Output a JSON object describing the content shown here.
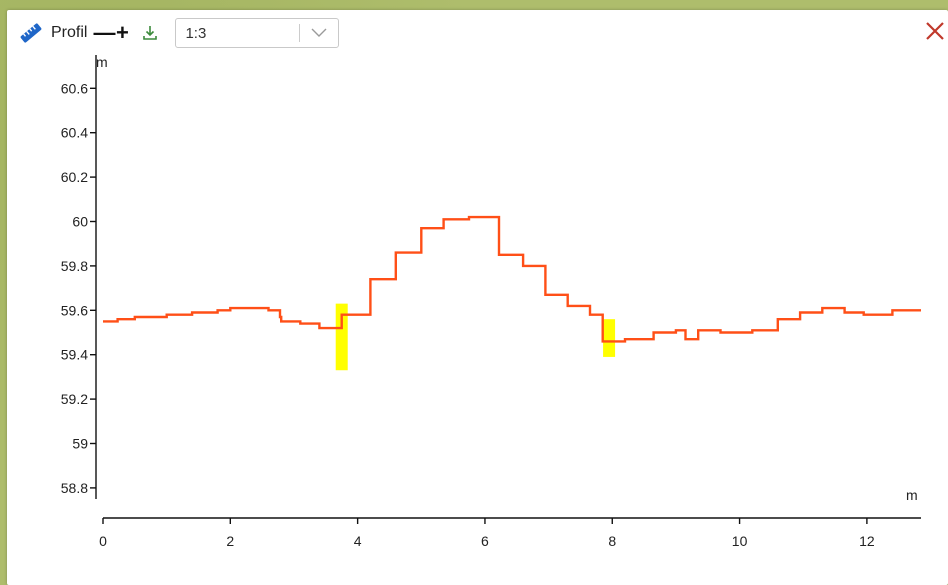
{
  "toolbar": {
    "ruler_icon": "ruler-icon",
    "title": "Profil",
    "zoom_out_label": "—",
    "zoom_in_label": "+",
    "download_icon": "download-icon",
    "scale_value": "1:3",
    "close_icon": "close-icon"
  },
  "colors": {
    "profile_line": "#ff4f17",
    "highlight": "#ffff00",
    "close": "#c0392b",
    "download": "#3c8a3c",
    "ruler": "#1f66c8"
  },
  "chart_data": {
    "type": "line",
    "ylabel": "m",
    "xlabel": "m",
    "xlim": [
      0,
      12.85
    ],
    "ylim": [
      58.75,
      60.75
    ],
    "x_ticks": [
      0,
      2,
      4,
      6,
      8,
      10,
      12
    ],
    "y_ticks": [
      58.8,
      59,
      59.2,
      59.4,
      59.6,
      59.8,
      60,
      60.2,
      60.4,
      60.6
    ],
    "y_tick_labels": [
      "58.8",
      "59",
      "59.2",
      "59.4",
      "59.6",
      "59.8",
      "60",
      "60.2",
      "60.4",
      "60.6"
    ],
    "series": [
      {
        "values": [
          [
            0,
            59.55
          ],
          [
            0.23,
            59.55
          ],
          [
            0.23,
            59.56
          ],
          [
            0.5,
            59.56
          ],
          [
            0.5,
            59.57
          ],
          [
            1.0,
            59.57
          ],
          [
            1.0,
            59.58
          ],
          [
            1.4,
            59.58
          ],
          [
            1.4,
            59.59
          ],
          [
            1.8,
            59.59
          ],
          [
            1.8,
            59.6
          ],
          [
            2.0,
            59.6
          ],
          [
            2.0,
            59.61
          ],
          [
            2.6,
            59.61
          ],
          [
            2.6,
            59.6
          ],
          [
            2.78,
            59.6
          ],
          [
            2.78,
            59.57
          ],
          [
            2.8,
            59.57
          ],
          [
            2.8,
            59.55
          ],
          [
            3.1,
            59.55
          ],
          [
            3.1,
            59.54
          ],
          [
            3.4,
            59.54
          ],
          [
            3.4,
            59.52
          ],
          [
            3.75,
            59.52
          ],
          [
            3.75,
            59.58
          ],
          [
            4.2,
            59.58
          ],
          [
            4.2,
            59.74
          ],
          [
            4.6,
            59.74
          ],
          [
            4.6,
            59.86
          ],
          [
            5.0,
            59.86
          ],
          [
            5.0,
            59.97
          ],
          [
            5.35,
            59.97
          ],
          [
            5.35,
            60.01
          ],
          [
            5.75,
            60.01
          ],
          [
            5.75,
            60.02
          ],
          [
            6.22,
            60.02
          ],
          [
            6.22,
            59.85
          ],
          [
            6.6,
            59.85
          ],
          [
            6.6,
            59.8
          ],
          [
            6.95,
            59.8
          ],
          [
            6.95,
            59.67
          ],
          [
            7.3,
            59.67
          ],
          [
            7.3,
            59.62
          ],
          [
            7.65,
            59.62
          ],
          [
            7.65,
            59.58
          ],
          [
            7.85,
            59.58
          ],
          [
            7.85,
            59.46
          ],
          [
            8.2,
            59.46
          ],
          [
            8.2,
            59.47
          ],
          [
            8.65,
            59.47
          ],
          [
            8.65,
            59.5
          ],
          [
            9.0,
            59.5
          ],
          [
            9.0,
            59.51
          ],
          [
            9.15,
            59.51
          ],
          [
            9.15,
            59.47
          ],
          [
            9.35,
            59.47
          ],
          [
            9.35,
            59.51
          ],
          [
            9.7,
            59.51
          ],
          [
            9.7,
            59.5
          ],
          [
            10.2,
            59.5
          ],
          [
            10.2,
            59.51
          ],
          [
            10.6,
            59.51
          ],
          [
            10.6,
            59.56
          ],
          [
            10.95,
            59.56
          ],
          [
            10.95,
            59.59
          ],
          [
            11.3,
            59.59
          ],
          [
            11.3,
            59.61
          ],
          [
            11.65,
            59.61
          ],
          [
            11.65,
            59.59
          ],
          [
            11.95,
            59.59
          ],
          [
            11.95,
            59.58
          ],
          [
            12.4,
            59.58
          ],
          [
            12.4,
            59.6
          ],
          [
            12.85,
            59.6
          ]
        ]
      }
    ],
    "highlights": [
      {
        "x": 3.75,
        "y_from": 59.33,
        "y_to": 59.63
      },
      {
        "x": 7.95,
        "y_from": 59.39,
        "y_to": 59.56
      }
    ],
    "grid": false,
    "legend": "none"
  }
}
